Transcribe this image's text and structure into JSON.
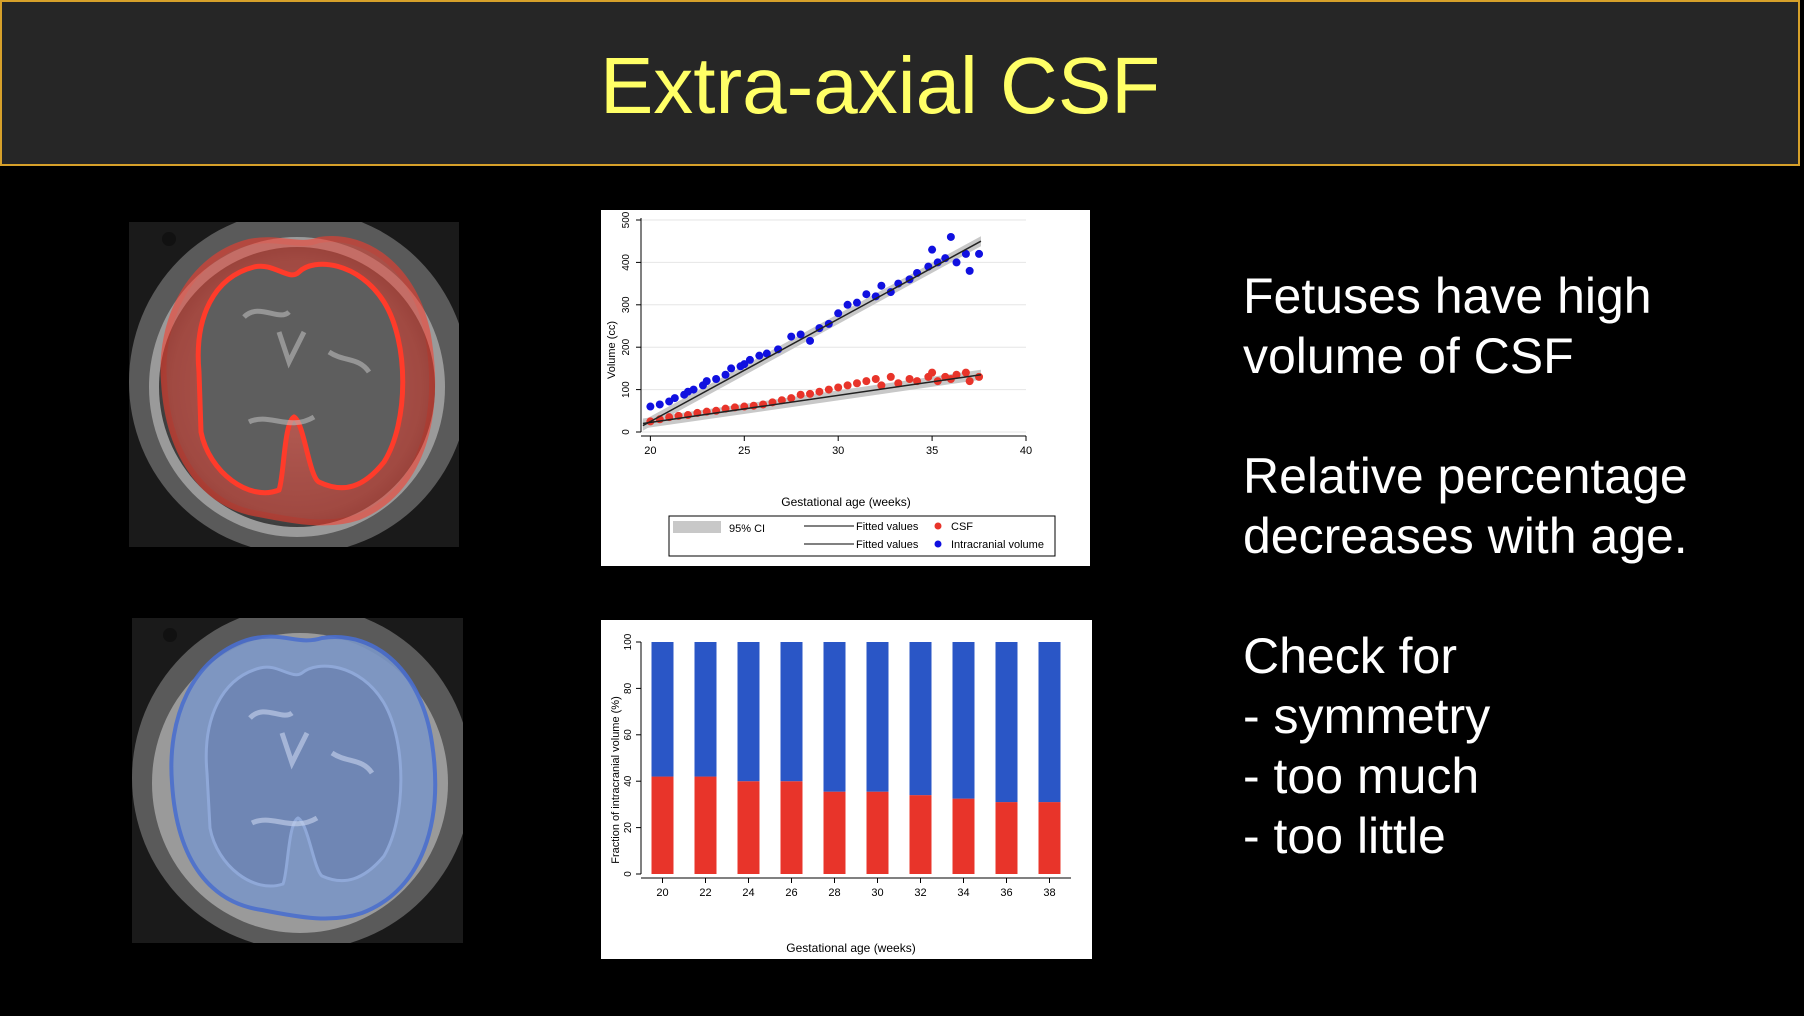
{
  "slide": {
    "title": "Extra-axial CSF",
    "bullets": {
      "b1": [
        "Fetuses have high",
        "volume of CSF"
      ],
      "b2": [
        "Relative percentage",
        "decreases with age."
      ],
      "b3": [
        "Check for",
        "- symmetry",
        "- too much",
        "- too little"
      ]
    },
    "colors": {
      "title": "#ffff66",
      "header_bg": "#262626",
      "header_border": "#d6a02a",
      "csf": "#e8342a",
      "intracranial": "#2a56c6",
      "bg": "#000000"
    }
  },
  "chart_data": [
    {
      "type": "scatter",
      "xlabel": "Gestational age (weeks)",
      "ylabel": "Volume (cc)",
      "xlim": [
        19.5,
        40
      ],
      "ylim": [
        0,
        500
      ],
      "xticks": [
        "20",
        "25",
        "30",
        "35",
        "40"
      ],
      "yticks": [
        "0",
        "100",
        "200",
        "300",
        "400",
        "500"
      ],
      "legend": {
        "ci_label": "95% CI",
        "fitted1": "Fitted values",
        "fitted2": "Fitted values",
        "csf_label": "CSF",
        "icv_label": "Intracranial volume"
      },
      "series": [
        {
          "name": "Intracranial volume",
          "color": "#1010e0",
          "x": [
            20,
            20.5,
            21,
            21.3,
            21.8,
            22,
            22.3,
            22.8,
            23,
            23.5,
            24,
            24.3,
            24.8,
            25,
            25.3,
            25.8,
            26.2,
            26.8,
            27.5,
            28,
            28.5,
            29,
            29.5,
            30,
            30.5,
            31,
            31.5,
            32,
            32.3,
            32.8,
            33.2,
            33.8,
            34.2,
            34.8,
            35,
            35.3,
            35.7,
            36,
            36.3,
            36.8,
            37,
            37.5
          ],
          "y": [
            60,
            65,
            72,
            80,
            88,
            95,
            100,
            110,
            120,
            125,
            135,
            150,
            155,
            160,
            170,
            180,
            185,
            195,
            225,
            230,
            215,
            245,
            255,
            280,
            300,
            305,
            325,
            320,
            345,
            330,
            350,
            360,
            375,
            390,
            430,
            400,
            410,
            460,
            400,
            420,
            380,
            420
          ]
        },
        {
          "name": "CSF",
          "color": "#e8342a",
          "x": [
            20,
            20.5,
            21,
            21.5,
            22,
            22.5,
            23,
            23.5,
            24,
            24.5,
            25,
            25.5,
            26,
            26.5,
            27,
            27.5,
            28,
            28.5,
            29,
            29.5,
            30,
            30.5,
            31,
            31.5,
            32,
            32.3,
            32.8,
            33.2,
            33.8,
            34.2,
            34.8,
            35,
            35.3,
            35.7,
            36,
            36.3,
            36.8,
            37,
            37.5
          ],
          "y": [
            25,
            30,
            35,
            38,
            40,
            45,
            48,
            50,
            55,
            58,
            60,
            62,
            65,
            70,
            75,
            80,
            88,
            90,
            95,
            100,
            105,
            110,
            115,
            120,
            125,
            110,
            130,
            115,
            125,
            120,
            130,
            140,
            120,
            130,
            125,
            135,
            140,
            120,
            130
          ]
        }
      ],
      "fitted": [
        {
          "name": "Fitted values",
          "x": [
            19.6,
            37.6
          ],
          "y": [
            15,
            450
          ]
        },
        {
          "name": "Fitted values",
          "x": [
            19.6,
            37.6
          ],
          "y": [
            20,
            135
          ]
        }
      ]
    },
    {
      "type": "bar",
      "stacked": true,
      "xlabel": "Gestational age (weeks)",
      "ylabel": "Fraction of intracranial volume (%)",
      "ylim": [
        0,
        100
      ],
      "yticks": [
        "0",
        "20",
        "40",
        "60",
        "80",
        "100"
      ],
      "categories": [
        "20",
        "22",
        "24",
        "26",
        "28",
        "30",
        "32",
        "34",
        "36",
        "38"
      ],
      "series": [
        {
          "color": "#e8342a",
          "values": [
            42,
            42,
            40,
            40,
            35.5,
            35.5,
            34,
            32.5,
            31,
            31
          ]
        },
        {
          "color": "#2a56c6",
          "values": [
            58,
            58,
            60,
            60,
            64.5,
            64.5,
            66,
            67.5,
            69,
            69
          ]
        }
      ]
    }
  ]
}
